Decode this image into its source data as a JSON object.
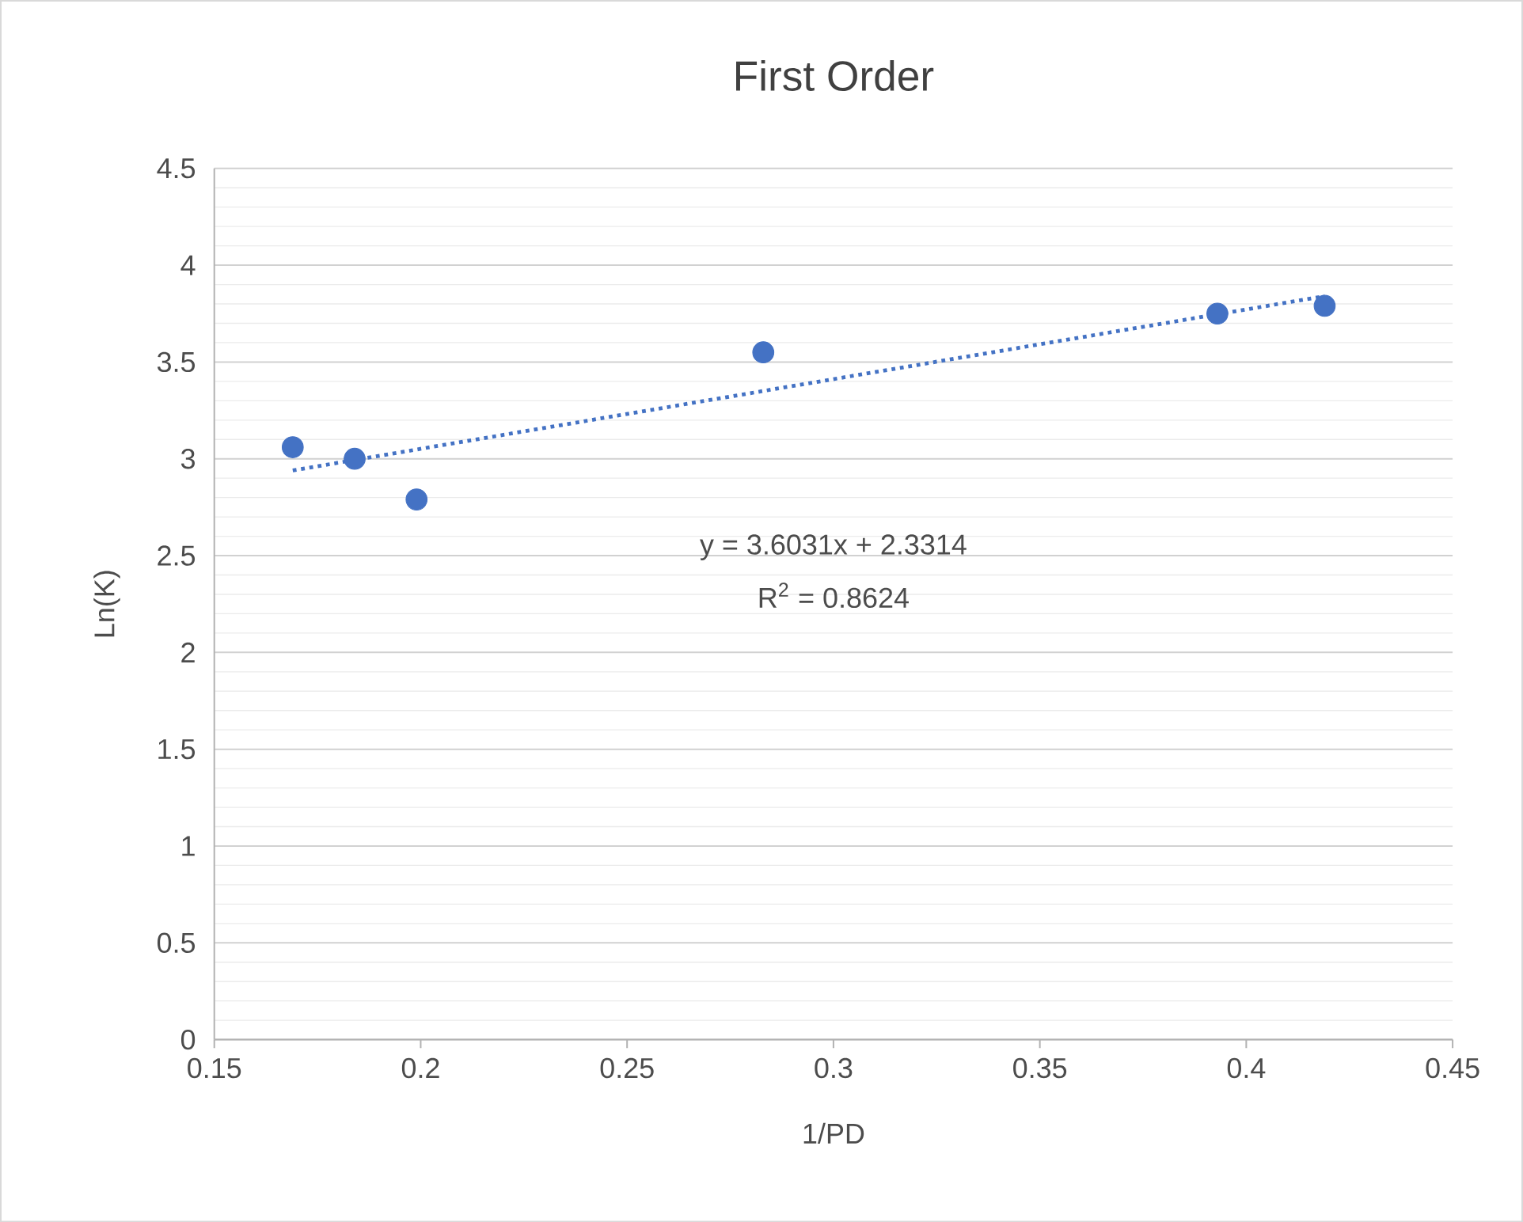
{
  "chart_data": {
    "type": "scatter",
    "title": "First Order",
    "xlabel": "1/PD",
    "ylabel": "Ln(K)",
    "series": [
      {
        "type": "scatter",
        "color": "#4472c4",
        "marker": "circle",
        "x": [
          0.169,
          0.184,
          0.199,
          0.283,
          0.393,
          0.419
        ],
        "values": [
          3.06,
          3.0,
          2.79,
          3.55,
          3.75,
          3.79
        ]
      },
      {
        "type": "line",
        "color": "#4472c4",
        "marker": "none",
        "line_style": "dotted",
        "x": [
          0.169,
          0.419
        ],
        "values": [
          2.94,
          3.84
        ]
      }
    ],
    "annotations": [
      "y = 3.6031x + 2.3314",
      "R$^{2}$ = 0.8624"
    ],
    "xlim": [
      0.15,
      0.45
    ],
    "ylim": [
      0,
      4.5
    ],
    "xticks": [
      0.15,
      0.2,
      0.25,
      0.3,
      0.35,
      0.4,
      0.45
    ],
    "yticks": [
      0,
      0.5,
      1,
      1.5,
      2,
      2.5,
      3,
      3.5,
      4,
      4.5
    ],
    "grid": "y"
  }
}
